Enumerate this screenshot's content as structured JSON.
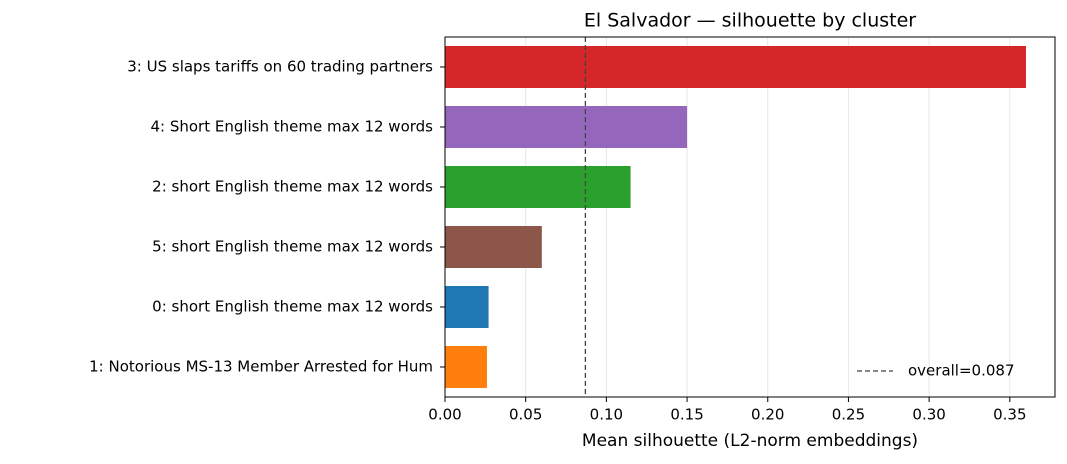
{
  "chart_data": {
    "type": "barh",
    "title": "El Salvador — silhouette by cluster",
    "x_label": "Mean silhouette (L2-norm embeddings)",
    "categories": [
      "3: US slaps tariffs on 60 trading partners",
      "4: Short English theme max 12 words",
      "2: short English theme max 12 words",
      "5: short English theme max 12 words",
      "0: short English theme max 12 words",
      "1: Notorious MS-13 Member Arrested for Hum"
    ],
    "values": [
      0.36,
      0.15,
      0.115,
      0.06,
      0.027,
      0.026
    ],
    "colors": [
      "#d62728",
      "#9467bd",
      "#2ca02c",
      "#8c564b",
      "#1f77b4",
      "#ff7f0e"
    ],
    "xlim": [
      0,
      0.378
    ],
    "xticks": [
      {
        "value": 0,
        "label": "0.00"
      },
      {
        "value": 0.05,
        "label": "0.05"
      },
      {
        "value": 0.1,
        "label": "0.10"
      },
      {
        "value": 0.15,
        "label": "0.15"
      },
      {
        "value": 0.2,
        "label": "0.20"
      },
      {
        "value": 0.25,
        "label": "0.25"
      },
      {
        "value": 0.3,
        "label": "0.30"
      },
      {
        "value": 0.35,
        "label": "0.35"
      }
    ],
    "grid": true,
    "reference_line": {
      "value": 0.087,
      "label": "overall=0.087",
      "color": "#444444"
    },
    "legend_position": "lower right"
  }
}
